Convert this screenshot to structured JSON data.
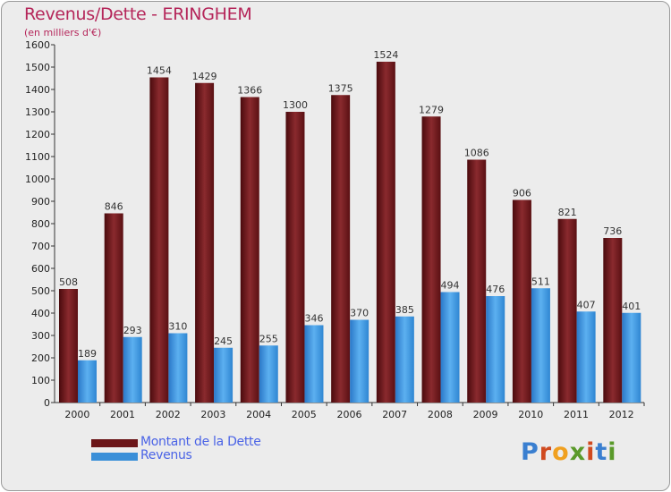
{
  "title": "Revenus/Dette - ERINGHEM",
  "subtitle": "(en milliers d'€)",
  "colors": {
    "dette": "#6b1518",
    "revenus": "#3a8fd8",
    "title": "#b5265a",
    "legend_text": "#4a63e6",
    "background": "#ececec"
  },
  "legend": [
    {
      "label": "Montant de la Dette",
      "color": "#6b1518"
    },
    {
      "label": "Revenus",
      "color": "#3a8fd8"
    }
  ],
  "logo": {
    "text": "Proxiti",
    "letters": [
      "P",
      "r",
      "o",
      "x",
      "i",
      "t",
      "i"
    ],
    "colors": [
      "#3a7fd0",
      "#d04a1f",
      "#f0a020",
      "#5a9a2a",
      "#d04a1f",
      "#3a7fd0",
      "#5a9a2a"
    ]
  },
  "chart_data": {
    "type": "bar",
    "title": "Revenus/Dette - ERINGHEM",
    "subtitle": "(en milliers d'€)",
    "categories": [
      "2000",
      "2001",
      "2002",
      "2003",
      "2004",
      "2005",
      "2006",
      "2007",
      "2008",
      "2009",
      "2010",
      "2011",
      "2012"
    ],
    "series": [
      {
        "name": "Montant de la Dette",
        "values": [
          508,
          846,
          1454,
          1429,
          1366,
          1300,
          1375,
          1524,
          1279,
          1086,
          906,
          821,
          736
        ]
      },
      {
        "name": "Revenus",
        "values": [
          189,
          293,
          310,
          245,
          255,
          346,
          370,
          385,
          494,
          476,
          511,
          407,
          401
        ]
      }
    ],
    "ylim": [
      0,
      1600
    ],
    "yticks": [
      "0",
      "100",
      "200",
      "300",
      "400",
      "500",
      "600",
      "700",
      "800",
      "900",
      "1000",
      "1100",
      "1200",
      "1300",
      "1400",
      "1500",
      "1600"
    ],
    "grid": false,
    "legend_position": "bottom-left"
  }
}
